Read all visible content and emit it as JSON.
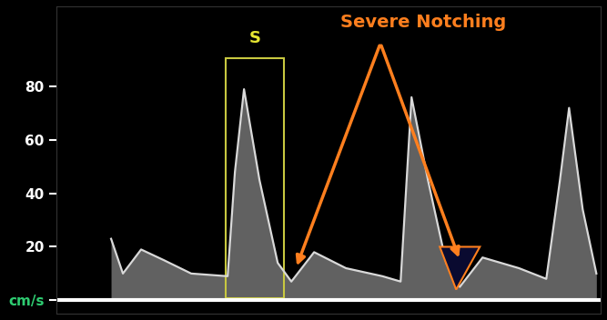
{
  "chart_data": {
    "type": "line",
    "x": [
      60,
      73,
      93,
      118,
      148,
      188,
      196,
      206,
      223,
      243,
      258,
      283,
      318,
      358,
      378,
      390,
      408,
      428,
      443,
      468,
      508,
      538,
      553,
      563,
      578,
      593
    ],
    "values": [
      23,
      10,
      19,
      15,
      10,
      9,
      48,
      79,
      45,
      14,
      7,
      18,
      12,
      9,
      7,
      76,
      45,
      14,
      5,
      16,
      12,
      8,
      45,
      72,
      34,
      10
    ],
    "color": "#d9d9d9",
    "xlim": [
      0,
      598
    ],
    "xticks": [],
    "ylim": [
      -5,
      110
    ],
    "yticks": [
      {
        "value": 0,
        "label": "cm/s"
      },
      20,
      40,
      60,
      80
    ],
    "tick_labels": "y",
    "annotations": [
      {
        "text": "S",
        "color": "#e6e632"
      },
      {
        "text": "Severe Notching",
        "color": "#ff7f1e",
        "points": [
          [
            263,
            12
          ],
          [
            443,
            15
          ]
        ]
      }
    ]
  }
}
